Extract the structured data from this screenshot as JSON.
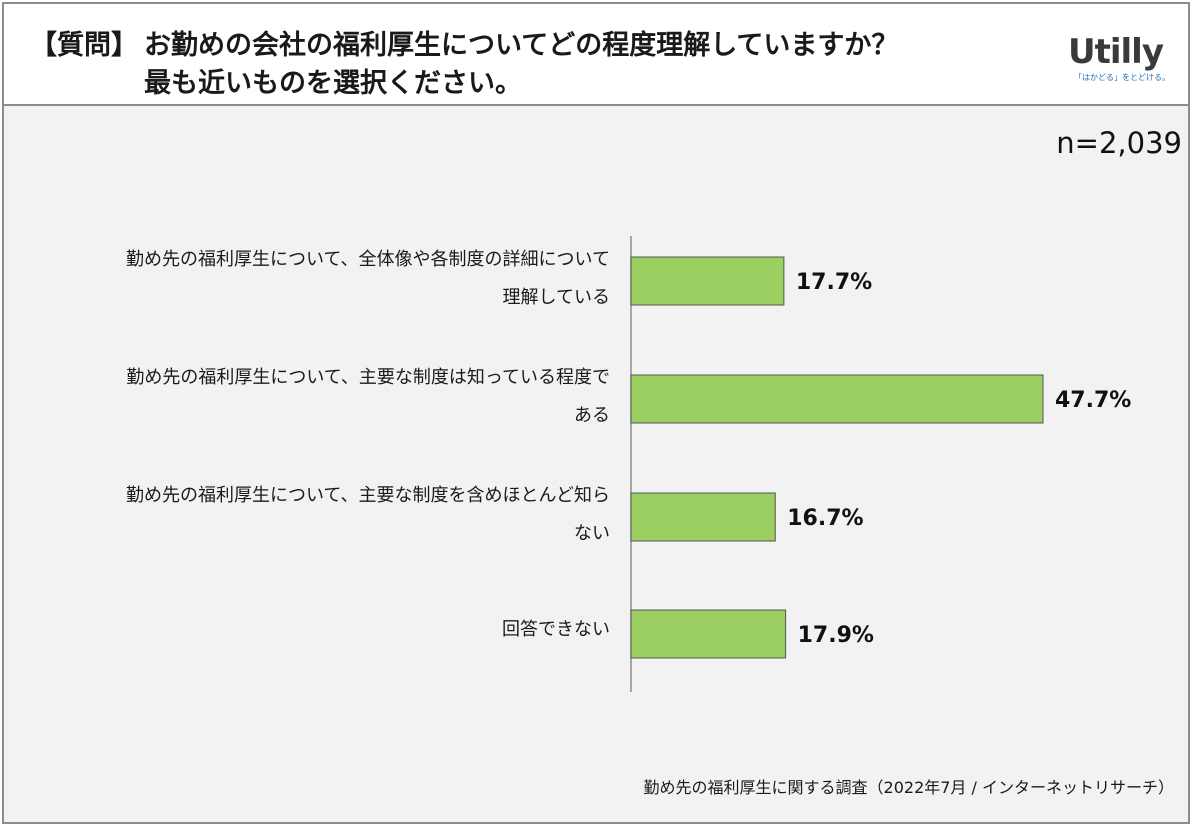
{
  "header": {
    "question_tag": "【質問】",
    "question_line1": "お勤めの会社の福利厚生についてどの程度理解していますか？",
    "question_line2": "最も近いものを選択ください。"
  },
  "logo": {
    "name": "Utilly",
    "tagline": "「はかどる」をとどける。"
  },
  "sample_size": "n=2,039",
  "footnote": "勤め先の福利厚生に関する調査（2022年7月 / インターネットリサーチ）",
  "colors": {
    "bar_fill": "#9ccf62",
    "bar_stroke": "#555555",
    "axis": "#8c8c8c"
  },
  "chart_data": {
    "type": "bar",
    "orientation": "horizontal",
    "categories": [
      [
        "勤め先の福利厚生について、全体像や各制度の詳細について",
        "理解している"
      ],
      [
        "勤め先の福利厚生について、主要な制度は知っている程度で",
        "ある"
      ],
      [
        "勤め先の福利厚生について、主要な制度を含めほとんど知ら",
        "ない"
      ],
      [
        "回答できない"
      ]
    ],
    "values": [
      17.7,
      47.7,
      16.7,
      17.9
    ],
    "value_labels": [
      "17.7%",
      "47.7%",
      "16.7%",
      "17.9%"
    ],
    "unit": "%",
    "xlim": [
      0,
      60
    ],
    "grid": false
  }
}
